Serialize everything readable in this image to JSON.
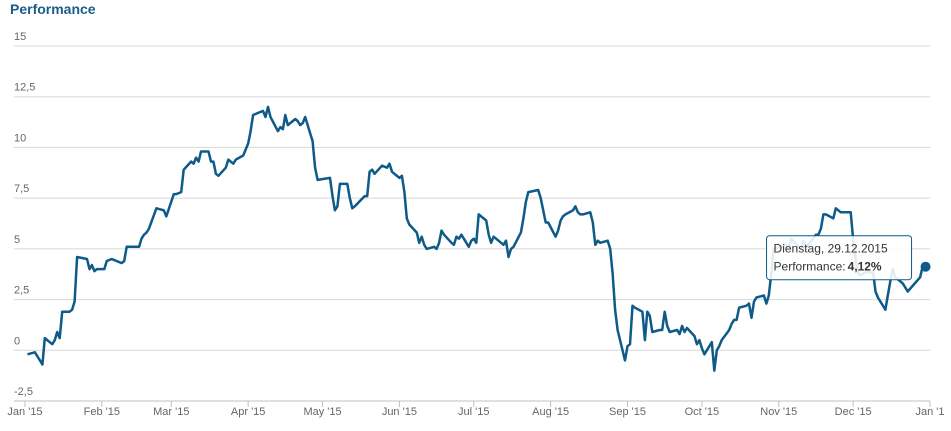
{
  "chart_data": {
    "type": "line",
    "title": "Performance",
    "x": [
      "2015-01-02",
      "2015-01-05",
      "2015-01-07",
      "2015-01-08",
      "2015-01-09",
      "2015-01-12",
      "2015-01-13",
      "2015-01-14",
      "2015-01-15",
      "2015-01-16",
      "2015-01-19",
      "2015-01-20",
      "2015-01-21",
      "2015-01-22",
      "2015-01-26",
      "2015-01-27",
      "2015-01-28",
      "2015-01-29",
      "2015-01-30",
      "2015-02-02",
      "2015-02-03",
      "2015-02-05",
      "2015-02-09",
      "2015-02-10",
      "2015-02-11",
      "2015-02-13",
      "2015-02-16",
      "2015-02-17",
      "2015-02-18",
      "2015-02-19",
      "2015-02-20",
      "2015-02-23",
      "2015-02-26",
      "2015-02-27",
      "2015-03-02",
      "2015-03-03",
      "2015-03-05",
      "2015-03-06",
      "2015-03-09",
      "2015-03-10",
      "2015-03-11",
      "2015-03-12",
      "2015-03-13",
      "2015-03-16",
      "2015-03-17",
      "2015-03-18",
      "2015-03-19",
      "2015-03-20",
      "2015-03-23",
      "2015-03-24",
      "2015-03-26",
      "2015-03-27",
      "2015-03-30",
      "2015-03-31",
      "2015-04-01",
      "2015-04-02",
      "2015-04-03",
      "2015-04-07",
      "2015-04-08",
      "2015-04-09",
      "2015-04-10",
      "2015-04-13",
      "2015-04-14",
      "2015-04-15",
      "2015-04-16",
      "2015-04-17",
      "2015-04-20",
      "2015-04-21",
      "2015-04-22",
      "2015-04-23",
      "2015-04-24",
      "2015-04-27",
      "2015-04-28",
      "2015-04-29",
      "2015-05-04",
      "2015-05-05",
      "2015-05-06",
      "2015-05-07",
      "2015-05-08",
      "2015-05-11",
      "2015-05-12",
      "2015-05-13",
      "2015-05-14",
      "2015-05-18",
      "2015-05-19",
      "2015-05-20",
      "2015-05-21",
      "2015-05-22",
      "2015-05-25",
      "2015-05-27",
      "2015-05-28",
      "2015-05-29",
      "2015-06-01",
      "2015-06-02",
      "2015-06-03",
      "2015-06-04",
      "2015-06-05",
      "2015-06-08",
      "2015-06-09",
      "2015-06-10",
      "2015-06-11",
      "2015-06-12",
      "2015-06-15",
      "2015-06-16",
      "2015-06-17",
      "2015-06-18",
      "2015-06-19",
      "2015-06-22",
      "2015-06-23",
      "2015-06-24",
      "2015-06-25",
      "2015-06-26",
      "2015-06-29",
      "2015-06-30",
      "2015-07-01",
      "2015-07-02",
      "2015-07-03",
      "2015-07-06",
      "2015-07-07",
      "2015-07-08",
      "2015-07-09",
      "2015-07-10",
      "2015-07-13",
      "2015-07-14",
      "2015-07-15",
      "2015-07-16",
      "2015-07-17",
      "2015-07-20",
      "2015-07-21",
      "2015-07-22",
      "2015-07-23",
      "2015-07-27",
      "2015-07-28",
      "2015-07-29",
      "2015-07-30",
      "2015-07-31",
      "2015-08-03",
      "2015-08-04",
      "2015-08-05",
      "2015-08-06",
      "2015-08-07",
      "2015-08-10",
      "2015-08-11",
      "2015-08-12",
      "2015-08-13",
      "2015-08-14",
      "2015-08-17",
      "2015-08-18",
      "2015-08-19",
      "2015-08-20",
      "2015-08-21",
      "2015-08-24",
      "2015-08-25",
      "2015-08-26",
      "2015-08-27",
      "2015-08-28",
      "2015-08-31",
      "2015-09-01",
      "2015-09-02",
      "2015-09-03",
      "2015-09-04",
      "2015-09-07",
      "2015-09-08",
      "2015-09-09",
      "2015-09-10",
      "2015-09-11",
      "2015-09-14",
      "2015-09-15",
      "2015-09-16",
      "2015-09-17",
      "2015-09-18",
      "2015-09-21",
      "2015-09-22",
      "2015-09-23",
      "2015-09-24",
      "2015-09-25",
      "2015-09-28",
      "2015-09-29",
      "2015-09-30",
      "2015-10-01",
      "2015-10-02",
      "2015-10-05",
      "2015-10-06",
      "2015-10-07",
      "2015-10-08",
      "2015-10-09",
      "2015-10-12",
      "2015-10-13",
      "2015-10-14",
      "2015-10-15",
      "2015-10-16",
      "2015-10-19",
      "2015-10-20",
      "2015-10-21",
      "2015-10-22",
      "2015-10-23",
      "2015-10-26",
      "2015-10-27",
      "2015-10-28",
      "2015-10-29",
      "2015-10-30",
      "2015-11-02",
      "2015-11-03",
      "2015-11-04",
      "2015-11-05",
      "2015-11-06",
      "2015-11-09",
      "2015-11-10",
      "2015-11-11",
      "2015-11-12",
      "2015-11-13",
      "2015-11-16",
      "2015-11-17",
      "2015-11-18",
      "2015-11-19",
      "2015-11-20",
      "2015-11-23",
      "2015-11-24",
      "2015-11-25",
      "2015-11-26",
      "2015-11-27",
      "2015-11-30",
      "2015-12-01",
      "2015-12-02",
      "2015-12-03",
      "2015-12-04",
      "2015-12-07",
      "2015-12-08",
      "2015-12-09",
      "2015-12-10",
      "2015-12-11",
      "2015-12-14",
      "2015-12-15",
      "2015-12-16",
      "2015-12-17",
      "2015-12-18",
      "2015-12-21",
      "2015-12-22",
      "2015-12-23",
      "2015-12-28",
      "2015-12-29"
    ],
    "series": [
      {
        "name": "Performance",
        "color": "#0e5a88",
        "values": [
          -0.2,
          -0.1,
          -0.5,
          -0.7,
          0.6,
          0.3,
          0.5,
          0.9,
          0.6,
          1.9,
          1.9,
          2.0,
          2.4,
          4.6,
          4.5,
          4.0,
          4.2,
          3.9,
          4.0,
          4.0,
          4.4,
          4.5,
          4.3,
          4.4,
          5.1,
          5.1,
          5.1,
          5.5,
          5.7,
          5.8,
          6.0,
          7.0,
          6.9,
          6.6,
          7.7,
          7.7,
          7.8,
          8.9,
          9.3,
          9.2,
          9.5,
          9.3,
          9.8,
          9.8,
          9.3,
          9.3,
          8.7,
          8.6,
          9.0,
          9.4,
          9.2,
          9.4,
          9.6,
          9.9,
          10.2,
          10.8,
          11.6,
          11.8,
          11.5,
          12.0,
          11.5,
          10.8,
          11.0,
          10.9,
          11.6,
          11.1,
          11.4,
          11.3,
          11.1,
          11.2,
          11.5,
          10.3,
          9.0,
          8.4,
          8.5,
          7.6,
          6.9,
          7.1,
          8.2,
          8.2,
          7.5,
          7.0,
          7.1,
          7.6,
          7.6,
          8.8,
          8.9,
          8.7,
          9.1,
          9.0,
          9.2,
          8.8,
          8.5,
          8.6,
          7.8,
          6.5,
          6.2,
          5.8,
          5.3,
          5.6,
          5.2,
          5.0,
          5.1,
          5.0,
          5.3,
          5.9,
          5.7,
          5.3,
          5.2,
          5.6,
          5.5,
          5.7,
          5.1,
          5.4,
          5.5,
          5.3,
          6.7,
          6.4,
          5.7,
          5.3,
          5.6,
          5.5,
          5.2,
          5.4,
          4.6,
          5.0,
          5.1,
          5.8,
          6.5,
          7.3,
          7.8,
          7.9,
          7.5,
          6.9,
          6.3,
          6.3,
          5.6,
          5.9,
          6.4,
          6.6,
          6.7,
          6.9,
          7.1,
          6.8,
          6.7,
          6.7,
          6.8,
          6.3,
          5.2,
          5.4,
          5.3,
          5.4,
          5.0,
          3.8,
          2.0,
          1.0,
          -0.5,
          0.2,
          0.3,
          2.2,
          2.1,
          1.9,
          0.5,
          1.9,
          1.7,
          0.9,
          1.0,
          1.0,
          1.9,
          1.2,
          0.9,
          1.0,
          0.8,
          1.2,
          0.9,
          1.1,
          0.7,
          0.3,
          0.5,
          0.1,
          -0.2,
          0.4,
          -1.0,
          0.0,
          0.2,
          0.5,
          1.0,
          1.3,
          1.5,
          1.5,
          2.1,
          2.2,
          2.3,
          1.6,
          2.4,
          2.6,
          2.7,
          2.3,
          2.7,
          3.8,
          5.0,
          5.1,
          5.2,
          5.2,
          5.0,
          5.5,
          5.1,
          5.0,
          5.4,
          5.1,
          5.2,
          5.7,
          5.7,
          6.0,
          6.7,
          6.7,
          6.5,
          7.0,
          6.9,
          6.8,
          6.8,
          6.8,
          5.5,
          4.5,
          3.8,
          3.7,
          3.9,
          3.8,
          3.9,
          2.9,
          2.6,
          2.0,
          2.7,
          3.4,
          4.0,
          3.6,
          3.3,
          3.1,
          2.9,
          3.6,
          4.12
        ]
      }
    ],
    "xlim": [
      "2015-01-01",
      "2016-01-01"
    ],
    "xticks": [
      {
        "value": "2015-01-01",
        "label": "Jan '15"
      },
      {
        "value": "2015-02-01",
        "label": "Feb '15"
      },
      {
        "value": "2015-03-01",
        "label": "Mar '15"
      },
      {
        "value": "2015-04-01",
        "label": "Apr '15"
      },
      {
        "value": "2015-05-01",
        "label": "May '15"
      },
      {
        "value": "2015-06-01",
        "label": "Jun '15"
      },
      {
        "value": "2015-07-01",
        "label": "Jul '15"
      },
      {
        "value": "2015-08-01",
        "label": "Aug '15"
      },
      {
        "value": "2015-09-01",
        "label": "Sep '15"
      },
      {
        "value": "2015-10-01",
        "label": "Oct '15"
      },
      {
        "value": "2015-11-01",
        "label": "Nov '15"
      },
      {
        "value": "2015-12-01",
        "label": "Dec '15"
      },
      {
        "value": "2016-01-01",
        "label": "Jan '1"
      }
    ],
    "ylim": [
      -2.5,
      15
    ],
    "yticks": [
      15,
      {
        "value": 12.5,
        "label": "12,5"
      },
      10,
      {
        "value": 7.5,
        "label": "7,5"
      },
      5,
      {
        "value": 2.5,
        "label": "2,5"
      },
      0,
      {
        "value": -2.5,
        "label": "-2,5"
      }
    ],
    "grid": true,
    "tooltip": {
      "date": "Dienstag, 29.12.2015",
      "label": "Performance:",
      "value": "4,12%"
    }
  }
}
